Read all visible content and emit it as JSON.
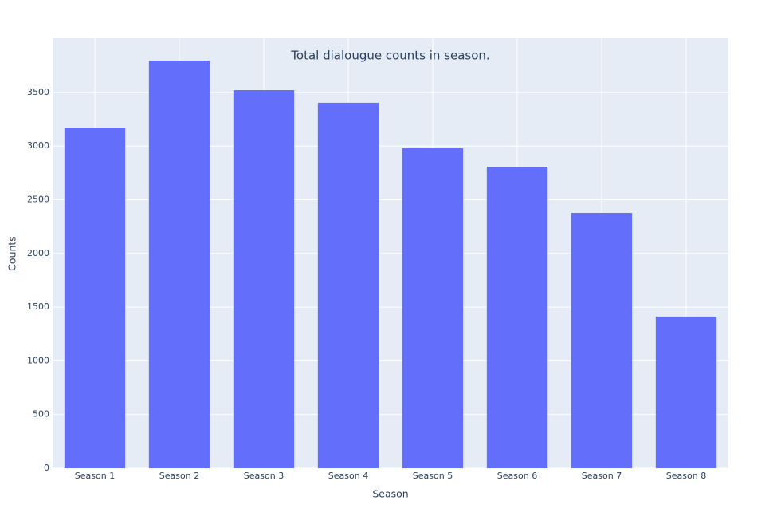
{
  "chart_data": {
    "type": "bar",
    "title": "Total dialougue counts in season.",
    "x_label": "Season",
    "y_label": "Counts",
    "categories": [
      "Season 1",
      "Season 2",
      "Season 3",
      "Season 4",
      "Season 5",
      "Season 6",
      "Season 7",
      "Season 8"
    ],
    "values": [
      3172,
      3796,
      3521,
      3403,
      2979,
      2808,
      2377,
      1412
    ],
    "color": "#636efa",
    "ylim": [
      0,
      4004
    ],
    "yticks": [
      0,
      500,
      1000,
      1500,
      2000,
      2500,
      3000,
      3500
    ],
    "grid": true
  }
}
